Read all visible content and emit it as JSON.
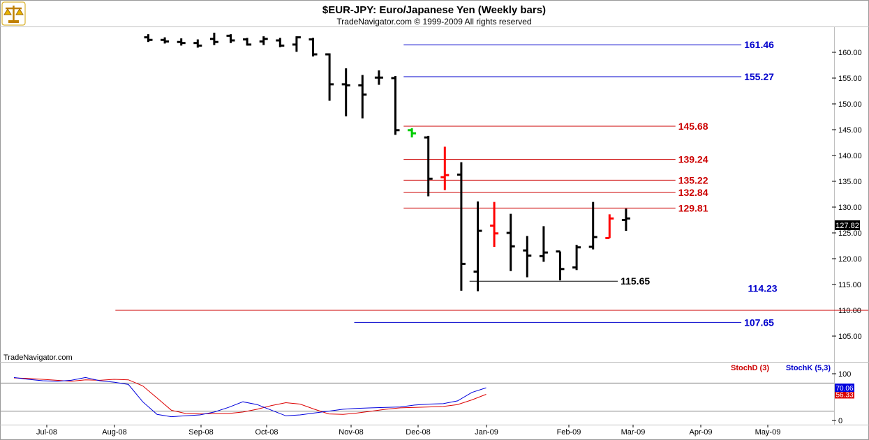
{
  "header": {
    "title": "$EUR-JPY:  Euro/Japanese Yen  (Weekly bars)",
    "subtitle": "TradeNavigator.com © 1999-2009 All rights reserved"
  },
  "watermark": "TradeNavigator.com",
  "logo": {
    "icon": "scales-logo-icon"
  },
  "chart_data": [
    {
      "type": "bar",
      "subtype": "ohlc",
      "ylim": [
        100,
        165
      ],
      "yticks": [
        "105.00",
        "110.00",
        "115.00",
        "120.00",
        "125.00",
        "130.00",
        "135.00",
        "140.00",
        "145.00",
        "150.00",
        "155.00",
        "160.00"
      ],
      "xticks": [
        "Jul-08",
        "Aug-08",
        "Sep-08",
        "Oct-08",
        "Nov-08",
        "Dec-08",
        "Jan-09",
        "Feb-09",
        "Mar-09",
        "Apr-09",
        "May-09"
      ],
      "last_value": "127.82",
      "bars": [
        {
          "high": 163.5,
          "low": 162.0,
          "open": 162.9,
          "close": 162.4,
          "color": "#000000"
        },
        {
          "high": 162.9,
          "low": 161.7,
          "open": 162.4,
          "close": 162.1,
          "color": "#000000"
        },
        {
          "high": 162.7,
          "low": 161.3,
          "open": 162.0,
          "close": 161.8,
          "color": "#000000"
        },
        {
          "high": 162.5,
          "low": 160.9,
          "open": 161.8,
          "close": 161.3,
          "color": "#000000"
        },
        {
          "high": 163.8,
          "low": 161.4,
          "open": 162.6,
          "close": 162.0,
          "color": "#000000"
        },
        {
          "high": 163.5,
          "low": 161.8,
          "open": 163.2,
          "close": 162.3,
          "color": "#000000"
        },
        {
          "high": 162.8,
          "low": 161.3,
          "open": 162.5,
          "close": 161.5,
          "color": "#000000"
        },
        {
          "high": 163.1,
          "low": 161.4,
          "open": 162.1,
          "close": 162.6,
          "color": "#000000"
        },
        {
          "high": 162.8,
          "low": 161.0,
          "open": 162.3,
          "close": 161.3,
          "color": "#000000"
        },
        {
          "high": 163.1,
          "low": 160.1,
          "open": 161.5,
          "close": 162.9,
          "color": "#000000"
        },
        {
          "high": 162.8,
          "low": 159.2,
          "open": 162.5,
          "close": 159.6,
          "color": "#000000"
        },
        {
          "high": 159.8,
          "low": 150.6,
          "open": 159.6,
          "close": 153.8,
          "color": "#000000"
        },
        {
          "high": 156.9,
          "low": 147.6,
          "open": 153.8,
          "close": 153.6,
          "color": "#000000"
        },
        {
          "high": 155.6,
          "low": 147.2,
          "open": 153.6,
          "close": 151.8,
          "color": "#000000"
        },
        {
          "high": 156.5,
          "low": 153.7,
          "open": 155.1,
          "close": 155.1,
          "color": "#000000"
        },
        {
          "high": 155.4,
          "low": 144.0,
          "open": 155.0,
          "close": 144.9,
          "color": "#000000"
        },
        {
          "high": 145.3,
          "low": 143.5,
          "open": 144.9,
          "close": 144.3,
          "color": "#00cc00"
        },
        {
          "high": 143.8,
          "low": 132.1,
          "open": 143.5,
          "close": 135.5,
          "color": "#000000"
        },
        {
          "high": 141.7,
          "low": 133.3,
          "open": 135.8,
          "close": 136.2,
          "color": "#ff0000"
        },
        {
          "high": 138.7,
          "low": 113.8,
          "open": 136.3,
          "close": 119.0,
          "color": "#000000"
        },
        {
          "high": 131.1,
          "low": 113.7,
          "open": 117.5,
          "close": 125.4,
          "color": "#000000"
        },
        {
          "high": 131.0,
          "low": 122.3,
          "open": 126.4,
          "close": 124.9,
          "color": "#ff0000"
        },
        {
          "high": 128.7,
          "low": 117.6,
          "open": 125.0,
          "close": 122.4,
          "color": "#000000"
        },
        {
          "high": 124.4,
          "low": 116.4,
          "open": 121.6,
          "close": 120.6,
          "color": "#000000"
        },
        {
          "high": 126.3,
          "low": 119.4,
          "open": 120.5,
          "close": 121.2,
          "color": "#000000"
        },
        {
          "high": 121.4,
          "low": 115.8,
          "open": 121.4,
          "close": 118.0,
          "color": "#000000"
        },
        {
          "high": 122.7,
          "low": 117.8,
          "open": 118.3,
          "close": 122.2,
          "color": "#000000"
        },
        {
          "high": 131.0,
          "low": 121.8,
          "open": 122.3,
          "close": 124.2,
          "color": "#000000"
        },
        {
          "high": 128.6,
          "low": 124.0,
          "open": 124.0,
          "close": 127.8,
          "color": "#ff0000"
        },
        {
          "high": 129.7,
          "low": 125.4,
          "open": 127.5,
          "close": 127.8,
          "color": "#000000"
        }
      ],
      "levels": [
        {
          "value": 161.46,
          "label": "161.46",
          "color": "#0000cc",
          "start_bar": 15.5,
          "end_bar": 36.0
        },
        {
          "value": 155.27,
          "label": "155.27",
          "color": "#0000cc",
          "start_bar": 15.5,
          "end_bar": 36.0
        },
        {
          "value": 145.68,
          "label": "145.68",
          "color": "#cc0000",
          "start_bar": 15.5,
          "end_bar": 32.0
        },
        {
          "value": 139.24,
          "label": "139.24",
          "color": "#cc0000",
          "start_bar": 15.5,
          "end_bar": 32.0
        },
        {
          "value": 135.22,
          "label": "135.22",
          "color": "#cc0000",
          "start_bar": 15.5,
          "end_bar": 32.0
        },
        {
          "value": 132.84,
          "label": "132.84",
          "color": "#cc0000",
          "start_bar": 15.5,
          "end_bar": 32.0
        },
        {
          "value": 129.81,
          "label": "129.81",
          "color": "#cc0000",
          "start_bar": 15.5,
          "end_bar": 32.0
        },
        {
          "value": 115.65,
          "label": "115.65",
          "color": "#000000",
          "start_bar": 19.5,
          "end_bar": 28.5
        },
        {
          "value": 114.23,
          "label": "114.23",
          "color": "#0000cc",
          "start_bar": null,
          "end_bar": null
        },
        {
          "value": 110.0,
          "label": "",
          "color": "#cc0000",
          "start_bar": -2.0,
          "end_bar": 60.0
        },
        {
          "value": 107.65,
          "label": "107.65",
          "color": "#0000cc",
          "start_bar": 12.5,
          "end_bar": 36.0
        }
      ]
    },
    {
      "type": "line",
      "ylim": [
        0,
        100
      ],
      "yticks": [
        "0",
        "100"
      ],
      "reference_lines": [
        80,
        20
      ],
      "legend": [
        "StochD (3)",
        "StochK (5,3)"
      ],
      "series": [
        {
          "name": "StochD (3)",
          "color": "#dd0000",
          "last_label": "56.33",
          "values": [
            91,
            90,
            88,
            86,
            84,
            87,
            86,
            88,
            87,
            74,
            48,
            22,
            15,
            14,
            15,
            15,
            18,
            24,
            32,
            38,
            35,
            24,
            14,
            13,
            16,
            20,
            24,
            27,
            28,
            29,
            30,
            34,
            44,
            56
          ]
        },
        {
          "name": "StochK (5,3)",
          "color": "#0000dd",
          "last_label": "70.06",
          "values": [
            92,
            88,
            85,
            84,
            86,
            92,
            85,
            82,
            77,
            40,
            13,
            8,
            10,
            12,
            18,
            28,
            40,
            34,
            22,
            10,
            12,
            16,
            20,
            24,
            26,
            27,
            28,
            29,
            33,
            35,
            36,
            42,
            60,
            70
          ]
        }
      ]
    }
  ]
}
